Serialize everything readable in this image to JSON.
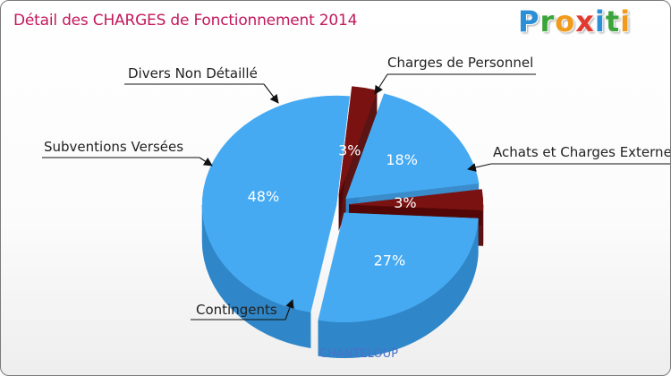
{
  "title": "Détail des CHARGES de Fonctionnement 2014",
  "logo": [
    "P",
    "r",
    "o",
    "x",
    "i",
    "t",
    "i"
  ],
  "footer": "CHANTELOUP",
  "colors": {
    "blue": "#45aaf2",
    "red": "#7a1212",
    "title": "#c2185b"
  },
  "chart_data": {
    "type": "pie",
    "title": "Détail des CHARGES de Fonctionnement 2014",
    "slices": [
      {
        "label": "Charges de Personnel",
        "value": 3,
        "display": "3%",
        "color": "#7a1212",
        "exploded": true
      },
      {
        "label": "Achats et Charges Externes",
        "value": 27,
        "display": "27%",
        "color": "#45aaf2",
        "exploded": true
      },
      {
        "label": "Contingents",
        "value": 48,
        "display": "48%",
        "color": "#45aaf2",
        "exploded": false
      },
      {
        "label": "Subventions Versées",
        "value": 3,
        "display": "3%",
        "color": "#7a1212",
        "exploded": true
      },
      {
        "label": "Divers Non Détaillé",
        "value": 18,
        "display": "18%",
        "color": "#45aaf2",
        "exploded": true
      }
    ]
  }
}
